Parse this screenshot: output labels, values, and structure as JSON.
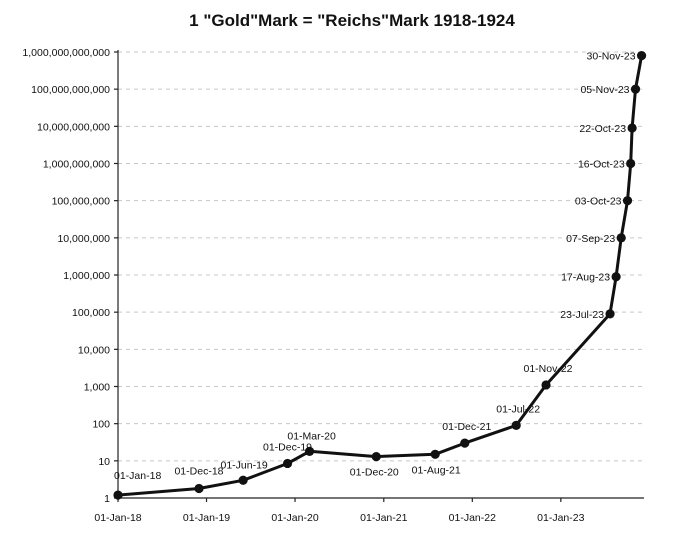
{
  "chart_data": {
    "type": "line",
    "title": "1 \"Gold\"Mark = \"Reichs\"Mark 1918-1924",
    "yscale": "log",
    "ylim": [
      1,
      1000000000000
    ],
    "y_tick_labels": [
      "1",
      "10",
      "100",
      "1,000",
      "10,000",
      "100,000",
      "1,000,000",
      "10,000,000",
      "100,000,000",
      "1,000,000,000",
      "10,000,000,000",
      "100,000,000,000",
      "1,000,000,000,000"
    ],
    "x_tick_labels": [
      "01-Jan-18",
      "01-Jan-19",
      "01-Jan-20",
      "01-Jan-21",
      "01-Jan-22",
      "01-Jan-23"
    ],
    "x_ticks": [
      "1918-01-01",
      "1919-01-01",
      "1920-01-01",
      "1921-01-01",
      "1922-01-01",
      "1923-01-01"
    ],
    "xlim": [
      "1918-01-01",
      "1923-12-10"
    ],
    "grid": "horizontal dashed",
    "series": [
      {
        "points": [
          {
            "x": "1918-01-01",
            "y": 1.2,
            "label": "01-Jan-18"
          },
          {
            "x": "1918-12-01",
            "y": 1.8,
            "label": "01-Dec-18"
          },
          {
            "x": "1919-06-01",
            "y": 3,
            "label": "01-Jun-19"
          },
          {
            "x": "1919-12-01",
            "y": 8.5,
            "label": "01-Dec-19"
          },
          {
            "x": "1920-03-01",
            "y": 18,
            "label": "01-Mar-20"
          },
          {
            "x": "1920-12-01",
            "y": 13,
            "label": "01-Dec-20"
          },
          {
            "x": "1921-08-01",
            "y": 15,
            "label": "01-Aug-21"
          },
          {
            "x": "1921-12-01",
            "y": 30,
            "label": "01-Dec-21"
          },
          {
            "x": "1922-07-01",
            "y": 90,
            "label": "01-Jul-22"
          },
          {
            "x": "1922-11-01",
            "y": 1100,
            "label": "01-Nov-22"
          },
          {
            "x": "1923-07-23",
            "y": 90000,
            "label": "23-Jul-23"
          },
          {
            "x": "1923-08-17",
            "y": 900000,
            "label": "17-Aug-23"
          },
          {
            "x": "1923-09-07",
            "y": 10000000,
            "label": "07-Sep-23"
          },
          {
            "x": "1923-10-03",
            "y": 100000000,
            "label": "03-Oct-23"
          },
          {
            "x": "1923-10-16",
            "y": 1000000000,
            "label": "16-Oct-23"
          },
          {
            "x": "1923-10-22",
            "y": 9000000000,
            "label": "22-Oct-23"
          },
          {
            "x": "1923-11-05",
            "y": 100000000000,
            "label": "05-Nov-23"
          },
          {
            "x": "1923-11-30",
            "y": 800000000000,
            "label": "30-Nov-23"
          }
        ]
      }
    ]
  }
}
